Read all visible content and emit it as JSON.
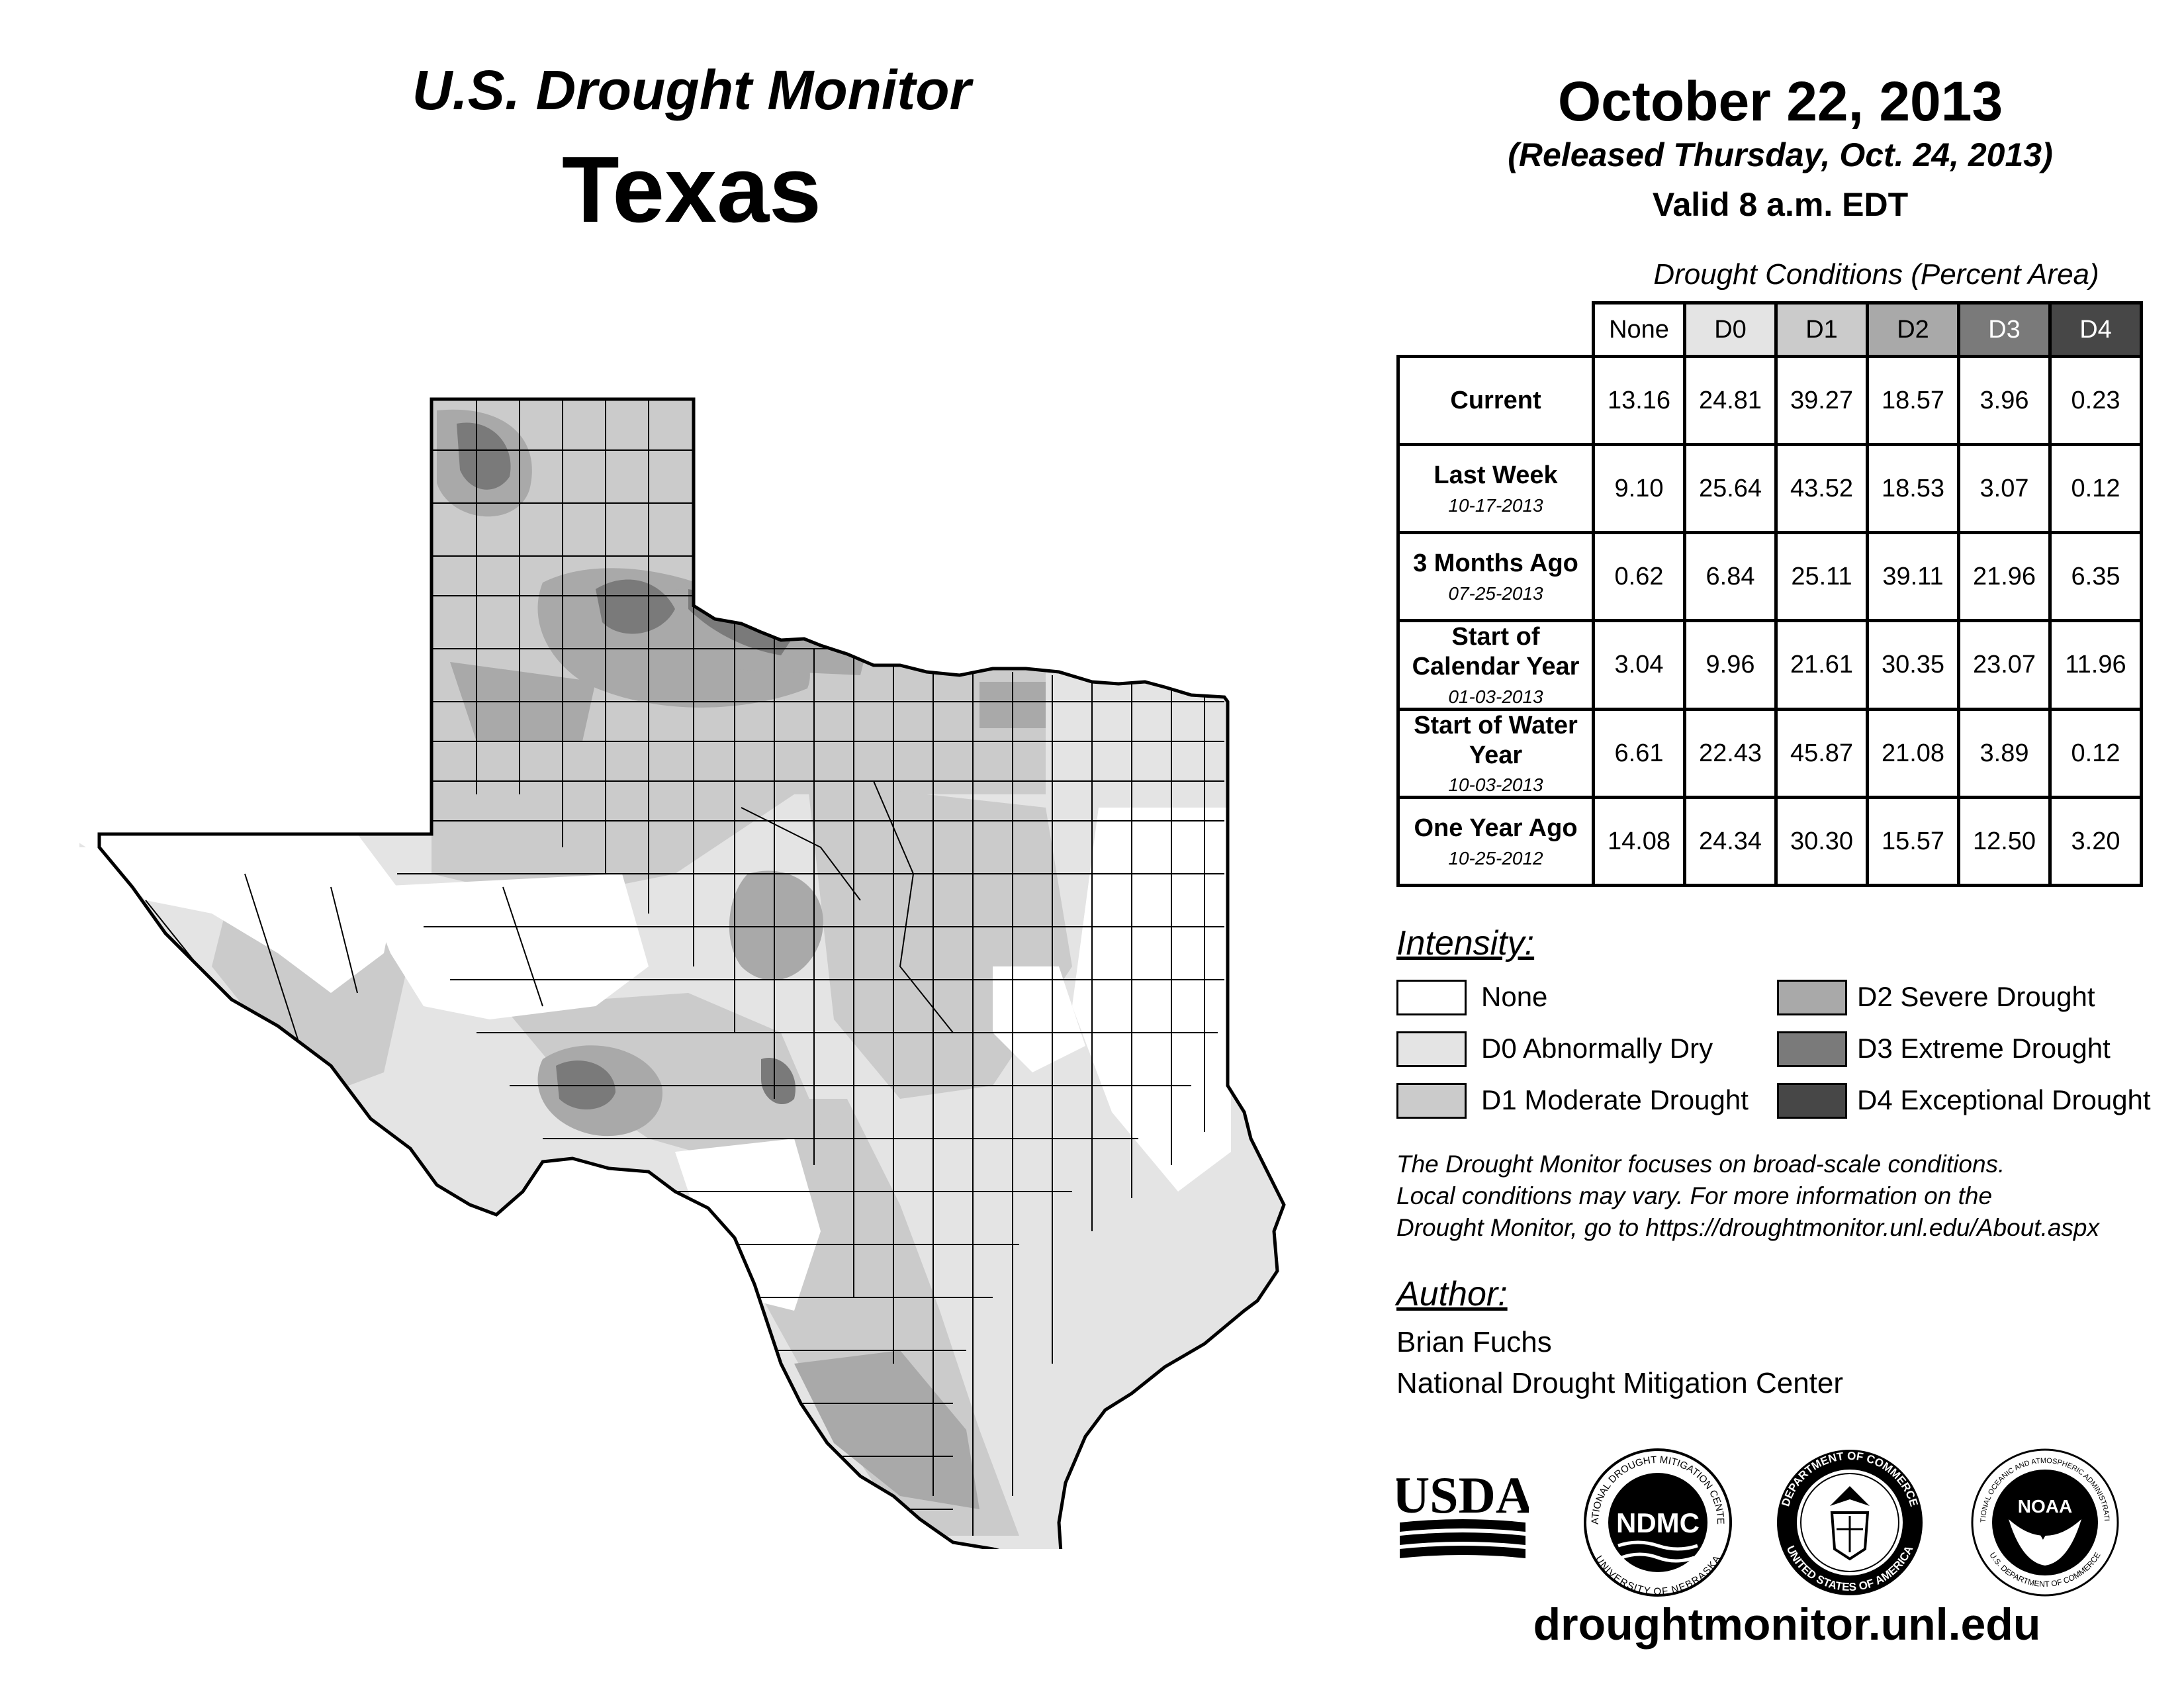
{
  "header": {
    "title": "U.S. Drought Monitor",
    "state": "Texas",
    "date": "October 22, 2013",
    "released": "(Released Thursday, Oct. 24, 2013)",
    "valid": "Valid 8 a.m. EDT"
  },
  "table": {
    "caption": "Drought Conditions (Percent Area)",
    "columns": [
      "None",
      "D0",
      "D1",
      "D2",
      "D3",
      "D4"
    ],
    "rows": [
      {
        "name": "Current",
        "date": "",
        "values": [
          "13.16",
          "24.81",
          "39.27",
          "18.57",
          "3.96",
          "0.23"
        ]
      },
      {
        "name": "Last Week",
        "date": "10-17-2013",
        "values": [
          "9.10",
          "25.64",
          "43.52",
          "18.53",
          "3.07",
          "0.12"
        ]
      },
      {
        "name": "3 Months Ago",
        "date": "07-25-2013",
        "values": [
          "0.62",
          "6.84",
          "25.11",
          "39.11",
          "21.96",
          "6.35"
        ]
      },
      {
        "name": "Start of Calendar Year",
        "date": "01-03-2013",
        "values": [
          "3.04",
          "9.96",
          "21.61",
          "30.35",
          "23.07",
          "11.96"
        ]
      },
      {
        "name": "Start of Water Year",
        "date": "10-03-2013",
        "values": [
          "6.61",
          "22.43",
          "45.87",
          "21.08",
          "3.89",
          "0.12"
        ]
      },
      {
        "name": "One Year Ago",
        "date": "10-25-2012",
        "values": [
          "14.08",
          "24.34",
          "30.30",
          "15.57",
          "12.50",
          "3.20"
        ]
      }
    ]
  },
  "legend": {
    "title": "Intensity:",
    "items": [
      {
        "label": "None",
        "color": "#ffffff"
      },
      {
        "label": "D0 Abnormally Dry",
        "color": "#e4e4e4"
      },
      {
        "label": "D1 Moderate Drought",
        "color": "#cbcbcb"
      },
      {
        "label": "D2 Severe Drought",
        "color": "#a9a9a9"
      },
      {
        "label": "D3 Extreme Drought",
        "color": "#7a7a7a"
      },
      {
        "label": "D4 Exceptional Drought",
        "color": "#474747"
      }
    ]
  },
  "note": {
    "line1": "The Drought Monitor focuses on broad-scale conditions.",
    "line2": "Local conditions may vary. For more information on the",
    "line3": "Drought Monitor, go to https://droughtmonitor.unl.edu/About.aspx"
  },
  "author": {
    "title": "Author:",
    "name": "Brian Fuchs",
    "org": "National Drought Mitigation Center"
  },
  "logos": {
    "usda": "USDA",
    "ndmc": "NDMC",
    "ndmc_ring_top": "NATIONAL DROUGHT MITIGATION CENTER",
    "ndmc_ring_bottom": "UNIVERSITY OF NEBRASKA",
    "doc_ring_top": "DEPARTMENT OF COMMERCE",
    "doc_ring_bottom": "UNITED STATES OF AMERICA",
    "noaa": "NOAA",
    "noaa_ring_top": "NATIONAL OCEANIC AND ATMOSPHERIC ADMINISTRATION",
    "noaa_ring_bottom": "U.S. DEPARTMENT OF COMMERCE"
  },
  "website": "droughtmonitor.unl.edu"
}
